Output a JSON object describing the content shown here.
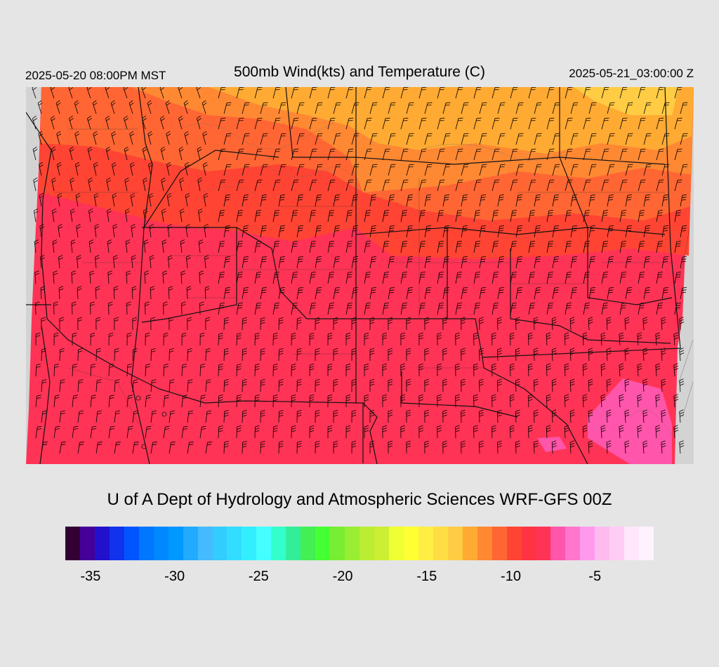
{
  "header": {
    "valid_local": "2025-05-20 08:00PM MST",
    "title": "500mb Wind(kts) and Temperature (C)",
    "valid_utc": "2025-05-21_03:00:00 Z"
  },
  "credit": "U of A Dept of Hydrology and Atmospheric Sciences WRF-GFS 00Z",
  "colorbar": {
    "colors": [
      "#330033",
      "#440099",
      "#2211cc",
      "#1133ee",
      "#0055ff",
      "#0077ff",
      "#0088ff",
      "#0099ff",
      "#22aaff",
      "#44bbff",
      "#33ccff",
      "#33ddff",
      "#33eeff",
      "#44ffff",
      "#33ffcc",
      "#33ee99",
      "#44ee55",
      "#44ff33",
      "#77ee33",
      "#99ee33",
      "#bbee33",
      "#ccee33",
      "#eeff33",
      "#ffff33",
      "#ffee44",
      "#ffdd44",
      "#ffcc44",
      "#ffaa33",
      "#ff8833",
      "#ff6633",
      "#ff4433",
      "#ff3344",
      "#ff3355",
      "#ff55aa",
      "#ff77cc",
      "#ff99ee",
      "#ffbbee",
      "#ffccf5",
      "#ffe6fb",
      "#fff2ff"
    ],
    "tick_labels": [
      "-35",
      "-30",
      "-25",
      "-20",
      "-15",
      "-10",
      "-5"
    ],
    "tick_values": [
      -35,
      -30,
      -25,
      -20,
      -15,
      -10,
      -5
    ],
    "range": [
      -36.5,
      -1.5
    ]
  },
  "map": {
    "background": "#d3d3d3",
    "temperature_colors": {
      "warm_north": "#ffaa33",
      "north_orange": "#ff8833",
      "mid_orange": "#ff6633",
      "red": "#ff4433",
      "south_red": "#ff3355",
      "pink": "#ff55aa",
      "yellow": "#ffcc44"
    }
  }
}
